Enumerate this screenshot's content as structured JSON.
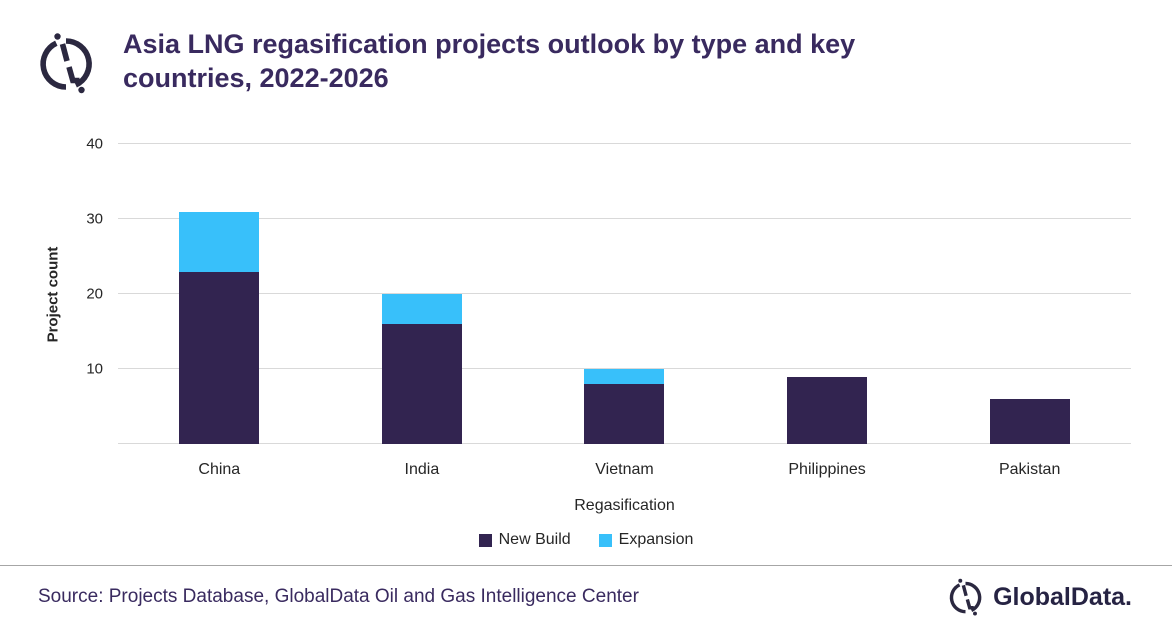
{
  "header": {
    "title_line1": "Asia LNG regasification projects outlook by type and key",
    "title_line2": "countries, 2022-2026"
  },
  "chart_data": {
    "type": "bar",
    "stacked": true,
    "title": "Asia LNG regasification projects outlook by type and key countries, 2022-2026",
    "categories": [
      "China",
      "India",
      "Vietnam",
      "Philippines",
      "Pakistan"
    ],
    "series": [
      {
        "name": "New Build",
        "color": "#322450",
        "values": [
          23,
          16,
          8,
          9,
          6
        ]
      },
      {
        "name": "Expansion",
        "color": "#38C0FA",
        "values": [
          8,
          4,
          2,
          0,
          0
        ]
      }
    ],
    "totals": [
      31,
      20,
      10,
      9,
      6
    ],
    "xlabel": "Regasification",
    "ylabel": "Project count",
    "ylim": [
      0,
      40
    ],
    "yticks": [
      10,
      20,
      30,
      40
    ],
    "grid": true,
    "legend_position": "bottom-center"
  },
  "footer": {
    "source": "Source: Projects Database, GlobalData Oil and Gas Intelligence Center",
    "brand": "GlobalData."
  },
  "colors": {
    "title_text": "#392A5F",
    "axis_text": "#262626",
    "gridline": "#D9D9D9",
    "new_build": "#322450",
    "expansion": "#38C0FA",
    "footer_rule": "#A6A6A6",
    "logo": "#2B2840"
  }
}
